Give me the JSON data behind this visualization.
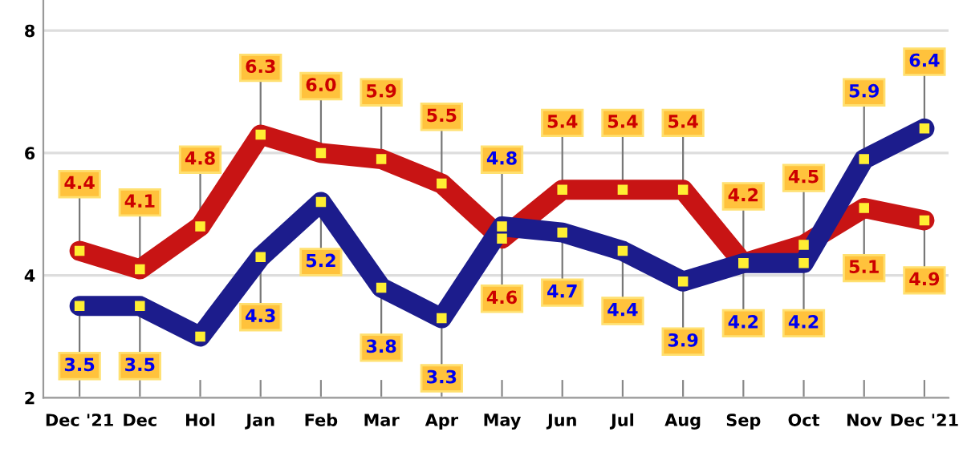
{
  "chart_data": {
    "type": "line",
    "categories": [
      "Dec '21",
      "Dec",
      "Hol",
      "Jan",
      "Feb",
      "Mar",
      "Apr",
      "May",
      "Jun",
      "Jul",
      "Aug",
      "Sep",
      "Oct",
      "Nov",
      "Dec '21"
    ],
    "series": [
      {
        "color": "#c81414",
        "values": [
          4.4,
          4.1,
          4.8,
          6.3,
          6.0,
          5.9,
          5.5,
          4.6,
          5.4,
          5.4,
          5.4,
          4.2,
          4.5,
          5.1,
          4.9
        ],
        "value_labels": [
          "4.4",
          "4.1",
          "4.8",
          "6.3",
          "6.0",
          "5.9",
          "5.5",
          "4.6",
          "5.4",
          "5.4",
          "5.4",
          "4.2",
          "4.5",
          "5.1",
          "4.9"
        ]
      },
      {
        "color": "#1c1c8c",
        "values": [
          3.5,
          3.5,
          3.0,
          4.3,
          5.2,
          3.8,
          3.3,
          4.8,
          4.7,
          4.4,
          3.9,
          4.2,
          4.2,
          5.9,
          6.4
        ],
        "value_labels": [
          "3.5",
          "3.5",
          null,
          "4.3",
          "5.2",
          "3.8",
          "3.3",
          "4.8",
          "4.7",
          "4.4",
          "3.9",
          "4.2",
          "4.2",
          "5.9",
          "6.4"
        ]
      }
    ],
    "ylim": [
      2,
      8.5
    ],
    "yticks": [
      2,
      4,
      6,
      8
    ],
    "grid": "y",
    "marker": "square",
    "line_style": "solid",
    "legend": false
  }
}
